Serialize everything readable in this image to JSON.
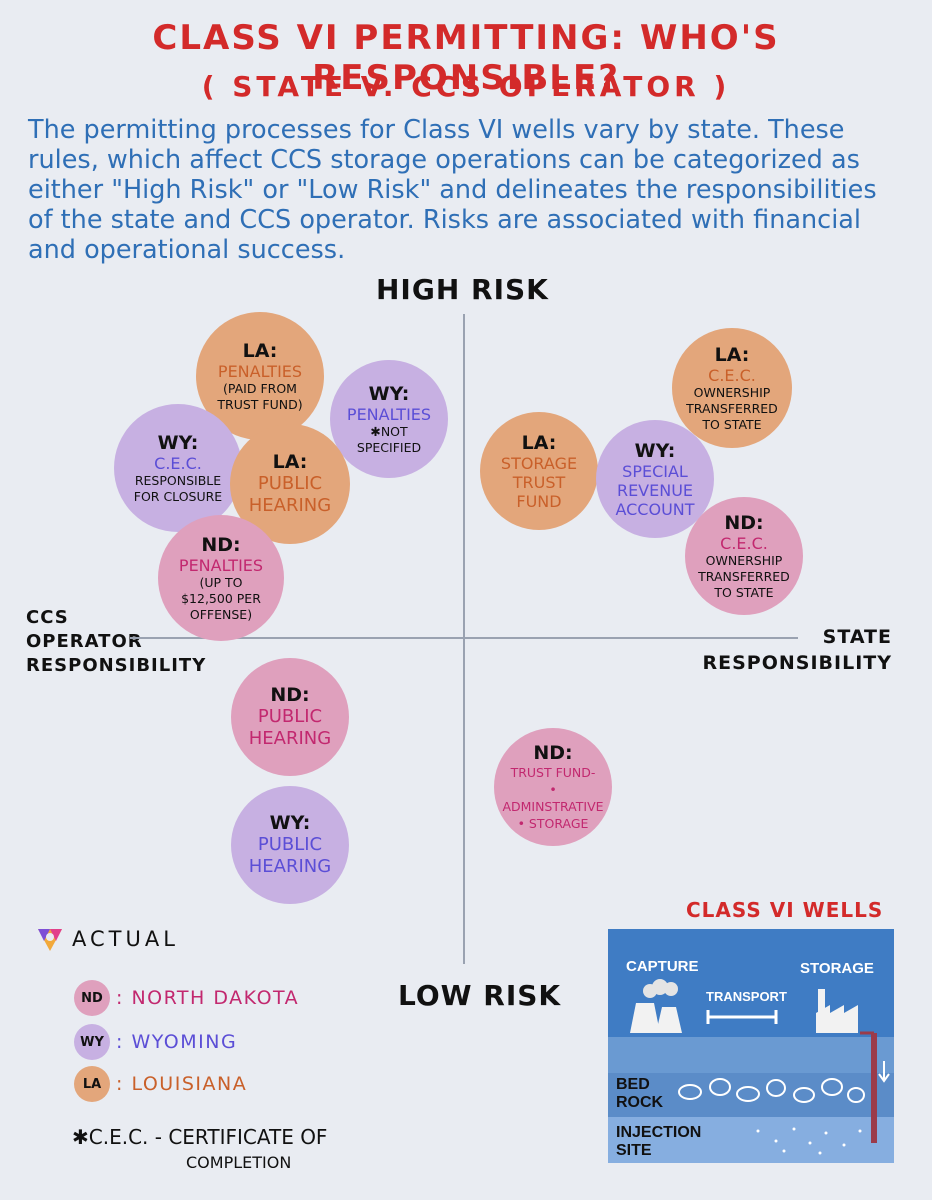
{
  "title": "CLASS VI PERMITTING: WHO'S RESPONSIBLE?",
  "subtitle": "( STATE V. CCS OPERATOR )",
  "intro": "The permitting processes for Class VI wells vary by state. These rules, which affect CCS storage operations can be categorized as either \"High Risk\" or \"Low Risk\" and delineates the responsibilities of the state and CCS operator. Risks are associated with financial and operational success.",
  "axes": {
    "top": "HIGH RISK",
    "bottom": "LOW RISK",
    "left_line1": "CCS",
    "left_line2": "OPERATOR",
    "left_line3": "RESPONSIBILITY",
    "right_line1": "STATE",
    "right_line2": "RESPONSIBILITY"
  },
  "bubbles": {
    "la_penalties": {
      "state": "LA:",
      "name": "PENALTIES",
      "detail1": "(PAID FROM",
      "detail2": "TRUST FUND)"
    },
    "wy_penalties": {
      "state": "WY:",
      "name": "PENALTIES",
      "detail1": "✱NOT",
      "detail2": "SPECIFIED"
    },
    "wy_cec": {
      "state": "WY:",
      "name": "C.E.C.",
      "detail1": "RESPONSIBLE",
      "detail2": "FOR CLOSURE"
    },
    "la_hearing": {
      "state": "LA:",
      "name1": "PUBLIC",
      "name2": "HEARING"
    },
    "nd_penalties": {
      "state": "ND:",
      "name": "PENALTIES",
      "detail1": "(UP TO",
      "detail2": "$12,500 PER",
      "detail3": "OFFENSE)"
    },
    "la_trust": {
      "state": "LA:",
      "name1": "STORAGE",
      "name2": "TRUST",
      "name3": "FUND"
    },
    "wy_special": {
      "state": "WY:",
      "name1": "SPECIAL",
      "name2": "REVENUE",
      "name3": "ACCOUNT"
    },
    "la_cec": {
      "state": "LA:",
      "name": "C.E.C.",
      "detail1": "OWNERSHIP",
      "detail2": "TRANSFERRED",
      "detail3": "TO STATE"
    },
    "nd_cec": {
      "state": "ND:",
      "name": "C.E.C.",
      "detail1": "OWNERSHIP",
      "detail2": "TRANSFERRED",
      "detail3": "TO STATE"
    },
    "nd_hearing": {
      "state": "ND:",
      "name1": "PUBLIC",
      "name2": "HEARING"
    },
    "wy_hearing": {
      "state": "WY:",
      "name1": "PUBLIC",
      "name2": "HEARING"
    },
    "nd_trust": {
      "state": "ND:",
      "name1": "TRUST FUND-",
      "name2": "• ADMINSTRATIVE",
      "name3": "• STORAGE"
    }
  },
  "logo": "ACTUAL",
  "legend": [
    {
      "abbr": "ND",
      "label": ": NORTH DAKOTA",
      "color": "#c2286f"
    },
    {
      "abbr": "WY",
      "label": ": WYOMING",
      "color": "#5b4ed6"
    },
    {
      "abbr": "LA",
      "label": ": LOUISIANA",
      "color": "#c9602a"
    }
  ],
  "footnote_line1": "✱C.E.C. - CERTIFICATE OF",
  "footnote_line2": "COMPLETION",
  "wells": {
    "title": "CLASS VI WELLS",
    "capture": "CAPTURE",
    "transport": "TRANSPORT",
    "storage": "STORAGE",
    "bed": "BED",
    "rock": "ROCK",
    "injection": "INJECTION",
    "site": "SITE"
  },
  "colors": {
    "accent_red": "#d32a2a",
    "text_blue": "#2f6fb6",
    "la": "#e3a67b",
    "wy": "#c7b0e2",
    "nd": "#dfa0bd"
  }
}
